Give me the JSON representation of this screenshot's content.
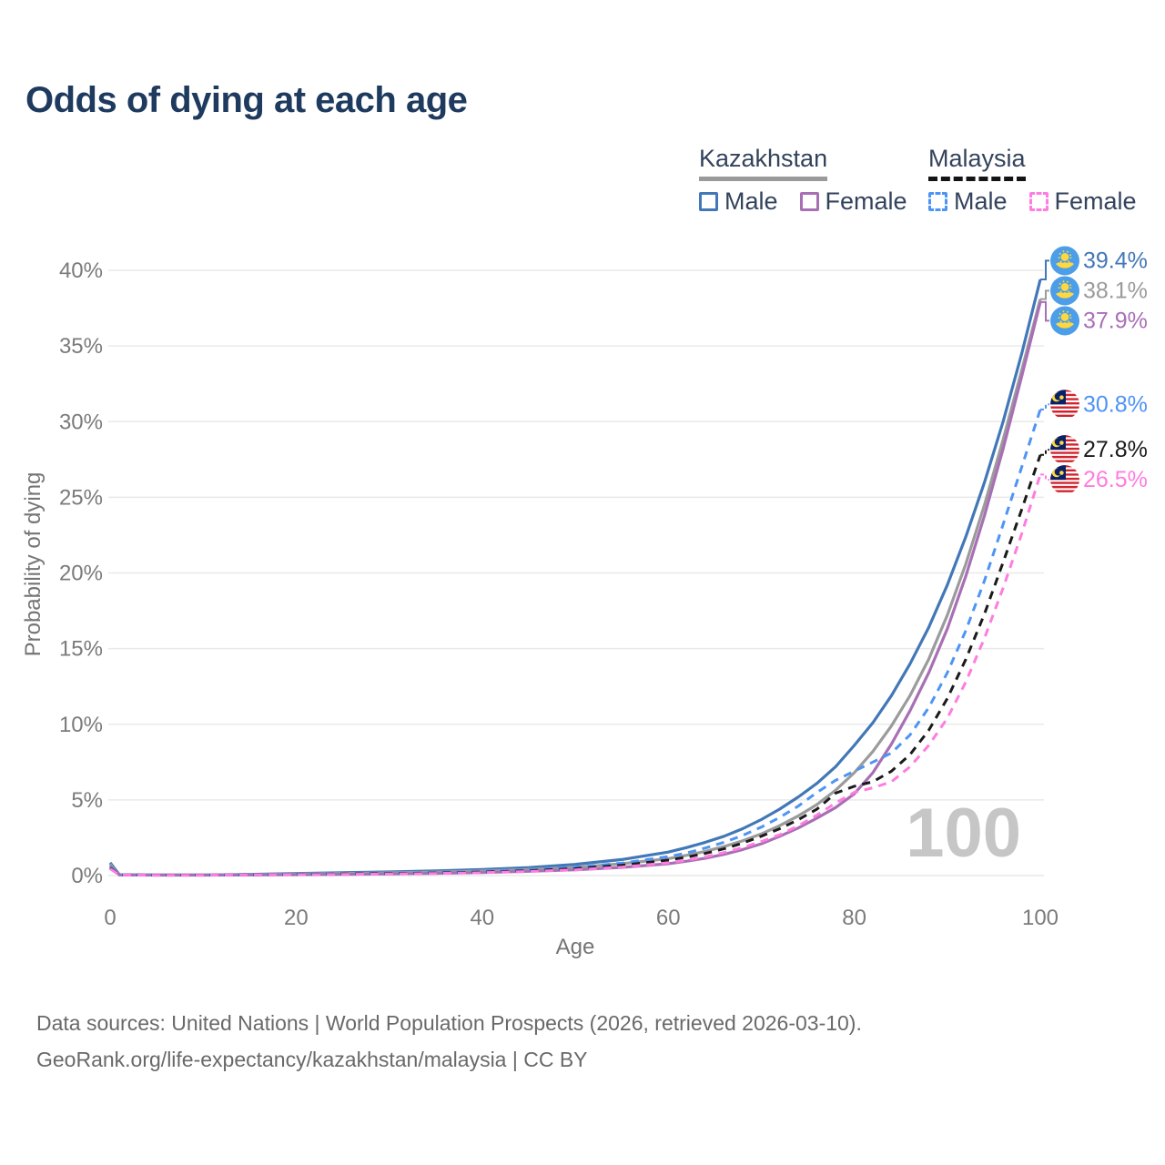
{
  "title": "Odds of dying at each age",
  "legend": {
    "groups": [
      {
        "country": "Kazakhstan",
        "line_style": "solid",
        "underline_color": "#9a9a9a",
        "entries": [
          {
            "label": "Male",
            "color": "#4277b8"
          },
          {
            "label": "Female",
            "color": "#a96fb5"
          }
        ]
      },
      {
        "country": "Malaysia",
        "line_style": "dashed",
        "underline_color": "#141414",
        "entries": [
          {
            "label": "Male",
            "color": "#4d94f5"
          },
          {
            "label": "Female",
            "color": "#ff7ce0"
          }
        ]
      }
    ]
  },
  "chart_data": {
    "type": "line",
    "title": "Odds of dying at each age",
    "xlabel": "Age",
    "ylabel": "Probability of dying",
    "xlim": [
      0,
      100
    ],
    "ylim": [
      0,
      40
    ],
    "x_ticks": [
      "0",
      "20",
      "40",
      "60",
      "80",
      "100"
    ],
    "y_ticks": [
      "0%",
      "5%",
      "10%",
      "15%",
      "20%",
      "25%",
      "30%",
      "35%",
      "40%"
    ],
    "grid": "horizontal",
    "legend_position": "top-right",
    "watermark": "100",
    "ages": [
      0,
      1,
      5,
      10,
      15,
      20,
      25,
      30,
      35,
      40,
      45,
      50,
      55,
      60,
      62,
      64,
      66,
      68,
      70,
      72,
      74,
      76,
      78,
      80,
      82,
      84,
      86,
      88,
      90,
      92,
      94,
      96,
      98,
      100
    ],
    "series": [
      {
        "id": "kazakhstan-male",
        "country": "Kazakhstan",
        "sex": "Male",
        "flag": "kz",
        "color": "#4277b8",
        "dash": null,
        "end_label": "39.4%",
        "values": [
          0.85,
          0.06,
          0.04,
          0.04,
          0.08,
          0.14,
          0.19,
          0.24,
          0.31,
          0.4,
          0.53,
          0.74,
          1.06,
          1.55,
          1.85,
          2.2,
          2.6,
          3.1,
          3.7,
          4.4,
          5.2,
          6.1,
          7.2,
          8.6,
          10.1,
          11.9,
          14.0,
          16.4,
          19.2,
          22.4,
          26.0,
          30.0,
          34.5,
          39.4
        ]
      },
      {
        "id": "kazakhstan-both",
        "country": "Kazakhstan",
        "sex": "Both sexes",
        "flag": "kz",
        "color": "#9b9b9b",
        "dash": null,
        "end_label": "38.1%",
        "values": [
          0.75,
          0.05,
          0.035,
          0.035,
          0.06,
          0.1,
          0.14,
          0.18,
          0.23,
          0.3,
          0.4,
          0.54,
          0.78,
          1.12,
          1.34,
          1.6,
          1.92,
          2.3,
          2.75,
          3.3,
          3.95,
          4.7,
          5.65,
          6.8,
          8.2,
          9.9,
          11.9,
          14.3,
          17.2,
          20.6,
          24.5,
          28.8,
          33.4,
          38.1
        ]
      },
      {
        "id": "kazakhstan-female",
        "country": "Kazakhstan",
        "sex": "Female",
        "flag": "kz",
        "color": "#a96fb5",
        "dash": null,
        "end_label": "37.9%",
        "values": [
          0.65,
          0.045,
          0.03,
          0.03,
          0.045,
          0.06,
          0.08,
          0.11,
          0.15,
          0.2,
          0.28,
          0.38,
          0.54,
          0.78,
          0.95,
          1.15,
          1.4,
          1.72,
          2.1,
          2.6,
          3.15,
          3.8,
          4.5,
          5.4,
          6.8,
          8.7,
          10.9,
          13.4,
          16.3,
          19.8,
          23.8,
          28.2,
          33.0,
          37.9
        ]
      },
      {
        "id": "malaysia-male",
        "country": "Malaysia",
        "sex": "Male",
        "flag": "my",
        "color": "#4d94f5",
        "dash": "9 7",
        "end_label": "30.8%",
        "values": [
          0.6,
          0.045,
          0.03,
          0.03,
          0.05,
          0.09,
          0.12,
          0.15,
          0.2,
          0.27,
          0.38,
          0.55,
          0.82,
          1.25,
          1.5,
          1.82,
          2.2,
          2.65,
          3.2,
          3.85,
          4.6,
          5.5,
          6.3,
          6.9,
          7.5,
          8.1,
          9.3,
          11.1,
          13.4,
          16.2,
          19.5,
          23.2,
          27.0,
          30.8
        ]
      },
      {
        "id": "malaysia-both",
        "country": "Malaysia",
        "sex": "Both sexes",
        "flag": "my",
        "color": "#1a1a1a",
        "dash": "9 7",
        "end_label": "27.8%",
        "values": [
          0.5,
          0.04,
          0.028,
          0.028,
          0.045,
          0.075,
          0.1,
          0.13,
          0.17,
          0.23,
          0.32,
          0.46,
          0.68,
          1.02,
          1.22,
          1.47,
          1.77,
          2.15,
          2.6,
          3.1,
          3.7,
          4.4,
          5.45,
          5.9,
          6.2,
          6.9,
          8.0,
          9.6,
          11.7,
          14.3,
          17.3,
          20.7,
          24.2,
          27.8
        ]
      },
      {
        "id": "malaysia-female",
        "country": "Malaysia",
        "sex": "Female",
        "flag": "my",
        "color": "#ff7ce0",
        "dash": "9 7",
        "end_label": "26.5%",
        "values": [
          0.45,
          0.035,
          0.025,
          0.025,
          0.04,
          0.06,
          0.08,
          0.1,
          0.14,
          0.19,
          0.27,
          0.38,
          0.56,
          0.84,
          1.02,
          1.24,
          1.52,
          1.85,
          2.25,
          2.7,
          3.3,
          4.0,
          4.8,
          5.5,
          5.8,
          6.2,
          7.2,
          8.6,
          10.4,
          12.8,
          15.7,
          19.0,
          22.6,
          26.5
        ]
      }
    ]
  },
  "footer": {
    "line1": "Data sources: United Nations | World Population Prospects (2026, retrieved 2026-03-10).",
    "line2": "GeoRank.org/life-expectancy/kazakhstan/malaysia | CC BY"
  }
}
